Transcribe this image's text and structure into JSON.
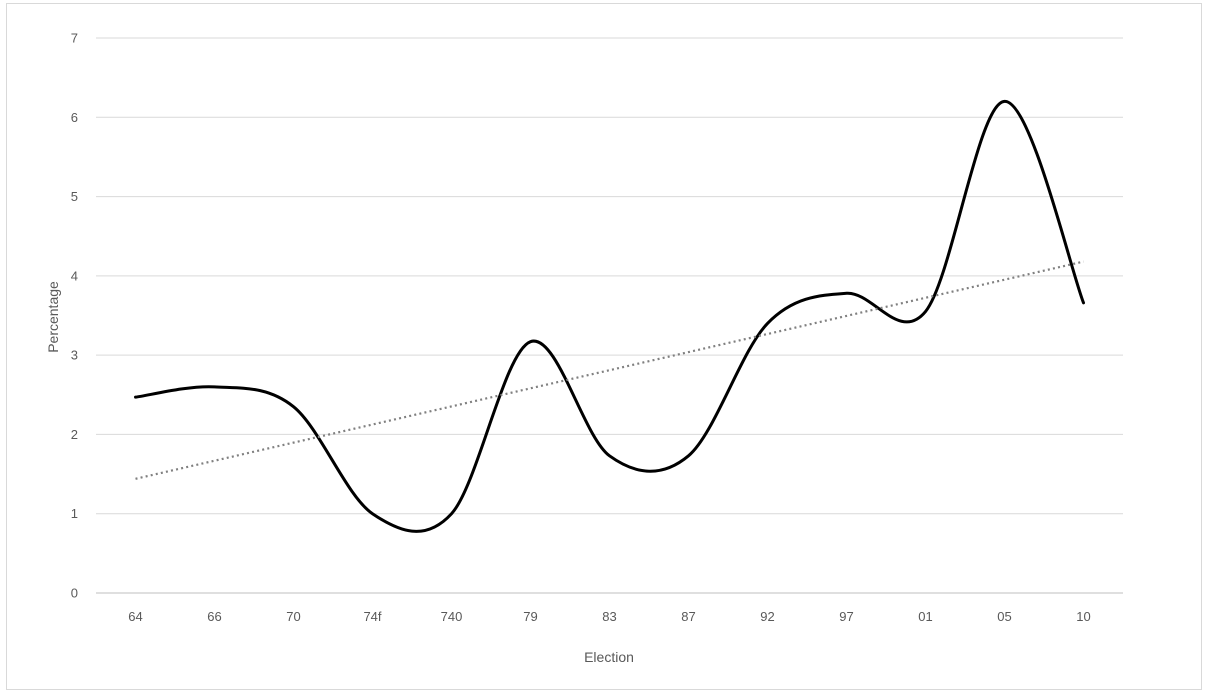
{
  "chart_data": {
    "type": "line",
    "title": "",
    "xlabel": "Election",
    "ylabel": "Percentage",
    "categories": [
      "64",
      "66",
      "70",
      "74f",
      "740",
      "79",
      "83",
      "87",
      "92",
      "97",
      "01",
      "05",
      "10"
    ],
    "series": [
      {
        "values": [
          2.47,
          2.6,
          2.35,
          1.0,
          1.0,
          3.17,
          1.73,
          1.73,
          3.4,
          3.78,
          3.55,
          6.2,
          3.66
        ],
        "color": "#000000",
        "style": "solid-smooth"
      },
      {
        "values": [
          1.44,
          1.67,
          1.89,
          2.12,
          2.35,
          2.58,
          2.8,
          3.03,
          3.26,
          3.49,
          3.72,
          3.94,
          4.18
        ],
        "color": "#808080",
        "style": "dotted-trendline"
      }
    ],
    "ylim": [
      0,
      7
    ],
    "yticks": [
      0,
      1,
      2,
      3,
      4,
      5,
      6,
      7
    ],
    "grid": true,
    "legend": "none"
  }
}
